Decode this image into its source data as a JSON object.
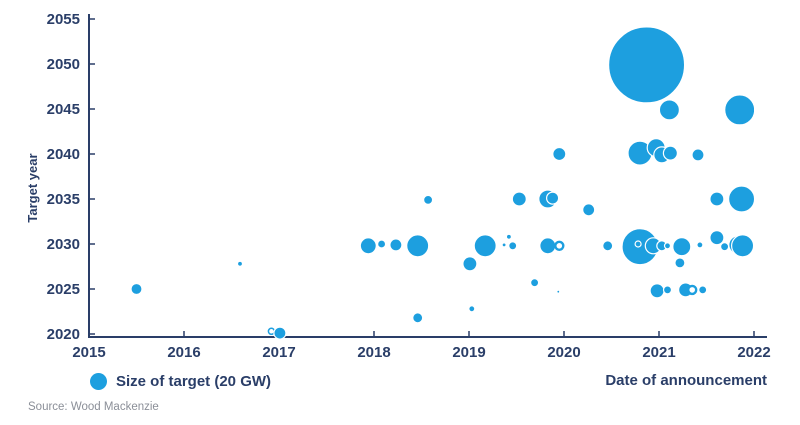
{
  "source_note": "Source: Wood Mackenzie",
  "chart_data": {
    "type": "scatter",
    "title": "",
    "xlabel": "Date of announcement",
    "ylabel": "Target year",
    "xlim": [
      2015,
      2022
    ],
    "ylim": [
      2020,
      2055
    ],
    "x_ticks": [
      2015,
      2016,
      2017,
      2018,
      2019,
      2020,
      2021,
      2022
    ],
    "y_ticks": [
      2020,
      2025,
      2030,
      2035,
      2040,
      2045,
      2050,
      2055
    ],
    "grid": false,
    "legend": {
      "label": "Size of target (20 GW)",
      "position": "bottom-left",
      "ref_radius_px": 8.5
    },
    "bubble_color": "#1d9fdf",
    "axis_color": "#2a3e68",
    "bubble_note": "r = bubble radius in px; area proportional to target size (20 GW reference = legend dot); style: solid | hollow | ring",
    "points": [
      {
        "x": 2015.5,
        "y": 2025.0,
        "r": 5.5,
        "style": "solid"
      },
      {
        "x": 2016.59,
        "y": 2027.8,
        "r": 2.5,
        "style": "solid"
      },
      {
        "x": 2016.92,
        "y": 2020.3,
        "r": 3,
        "style": "ring"
      },
      {
        "x": 2017.01,
        "y": 2020.1,
        "r": 6,
        "style": "solid"
      },
      {
        "x": 2017.94,
        "y": 2029.8,
        "r": 8,
        "style": "solid"
      },
      {
        "x": 2018.08,
        "y": 2030.0,
        "r": 4,
        "style": "solid"
      },
      {
        "x": 2018.23,
        "y": 2029.9,
        "r": 6,
        "style": "solid"
      },
      {
        "x": 2018.46,
        "y": 2029.8,
        "r": 11,
        "style": "solid"
      },
      {
        "x": 2018.57,
        "y": 2034.9,
        "r": 4.5,
        "style": "solid"
      },
      {
        "x": 2018.46,
        "y": 2021.8,
        "r": 5,
        "style": "solid"
      },
      {
        "x": 2019.03,
        "y": 2022.8,
        "r": 3,
        "style": "solid"
      },
      {
        "x": 2019.01,
        "y": 2027.8,
        "r": 7,
        "style": "solid"
      },
      {
        "x": 2019.17,
        "y": 2029.8,
        "r": 11,
        "style": "solid"
      },
      {
        "x": 2019.42,
        "y": 2030.8,
        "r": 2.5,
        "style": "solid"
      },
      {
        "x": 2019.37,
        "y": 2029.9,
        "r": 2,
        "style": "solid"
      },
      {
        "x": 2019.46,
        "y": 2029.8,
        "r": 4,
        "style": "solid"
      },
      {
        "x": 2019.53,
        "y": 2035.0,
        "r": 7,
        "style": "solid"
      },
      {
        "x": 2019.83,
        "y": 2035.0,
        "r": 9,
        "style": "solid"
      },
      {
        "x": 2019.88,
        "y": 2035.1,
        "r": 6,
        "style": "solid"
      },
      {
        "x": 2019.69,
        "y": 2025.7,
        "r": 4,
        "style": "solid"
      },
      {
        "x": 2019.94,
        "y": 2024.7,
        "r": 1.5,
        "style": "solid"
      },
      {
        "x": 2019.83,
        "y": 2029.8,
        "r": 8,
        "style": "solid"
      },
      {
        "x": 2019.95,
        "y": 2029.8,
        "r": 4,
        "style": "hollow"
      },
      {
        "x": 2019.95,
        "y": 2040.0,
        "r": 6.5,
        "style": "solid"
      },
      {
        "x": 2020.26,
        "y": 2033.8,
        "r": 6,
        "style": "solid"
      },
      {
        "x": 2020.46,
        "y": 2029.8,
        "r": 5,
        "style": "solid"
      },
      {
        "x": 2020.87,
        "y": 2049.9,
        "r": 38,
        "style": "solid"
      },
      {
        "x": 2021.11,
        "y": 2044.9,
        "r": 10,
        "style": "solid"
      },
      {
        "x": 2021.85,
        "y": 2044.9,
        "r": 15,
        "style": "solid"
      },
      {
        "x": 2020.8,
        "y": 2040.1,
        "r": 12,
        "style": "solid"
      },
      {
        "x": 2020.97,
        "y": 2040.7,
        "r": 9,
        "style": "solid"
      },
      {
        "x": 2021.03,
        "y": 2039.9,
        "r": 8,
        "style": "solid"
      },
      {
        "x": 2021.12,
        "y": 2040.1,
        "r": 7,
        "style": "solid"
      },
      {
        "x": 2021.41,
        "y": 2039.9,
        "r": 6,
        "style": "solid"
      },
      {
        "x": 2021.61,
        "y": 2035.0,
        "r": 7,
        "style": "solid"
      },
      {
        "x": 2021.87,
        "y": 2035.0,
        "r": 13,
        "style": "solid"
      },
      {
        "x": 2020.8,
        "y": 2029.7,
        "r": 18,
        "style": "solid"
      },
      {
        "x": 2020.78,
        "y": 2030.0,
        "r": 3,
        "style": "solid"
      },
      {
        "x": 2020.94,
        "y": 2029.8,
        "r": 8,
        "style": "solid"
      },
      {
        "x": 2021.03,
        "y": 2029.8,
        "r": 5,
        "style": "solid"
      },
      {
        "x": 2021.09,
        "y": 2029.8,
        "r": 3,
        "style": "solid"
      },
      {
        "x": 2021.24,
        "y": 2029.7,
        "r": 9,
        "style": "solid"
      },
      {
        "x": 2021.43,
        "y": 2029.9,
        "r": 3,
        "style": "solid"
      },
      {
        "x": 2021.22,
        "y": 2027.9,
        "r": 5,
        "style": "solid"
      },
      {
        "x": 2021.61,
        "y": 2030.7,
        "r": 7,
        "style": "solid"
      },
      {
        "x": 2021.69,
        "y": 2029.7,
        "r": 4,
        "style": "solid"
      },
      {
        "x": 2021.83,
        "y": 2029.9,
        "r": 9,
        "style": "solid"
      },
      {
        "x": 2021.88,
        "y": 2029.8,
        "r": 11,
        "style": "solid"
      },
      {
        "x": 2020.98,
        "y": 2024.8,
        "r": 7,
        "style": "solid"
      },
      {
        "x": 2021.09,
        "y": 2024.9,
        "r": 4,
        "style": "solid"
      },
      {
        "x": 2021.28,
        "y": 2024.9,
        "r": 7,
        "style": "solid"
      },
      {
        "x": 2021.35,
        "y": 2024.9,
        "r": 4,
        "style": "hollow"
      },
      {
        "x": 2021.46,
        "y": 2024.9,
        "r": 4,
        "style": "solid"
      }
    ]
  }
}
